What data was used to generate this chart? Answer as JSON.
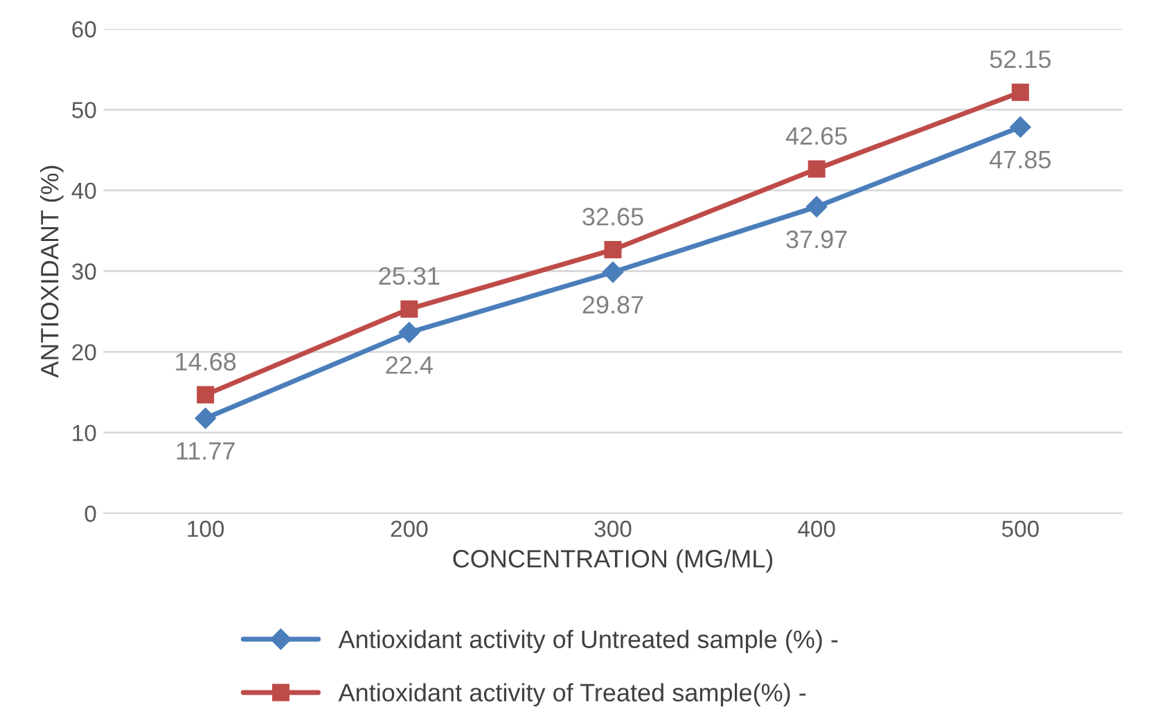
{
  "chart_data": {
    "type": "line",
    "xlabel": "CONCENTRATION (MG/ML)",
    "ylabel": "ANTIOXIDANT (%)",
    "categories": [
      "100",
      "200",
      "300",
      "400",
      "500"
    ],
    "series": [
      {
        "name": "Antioxidant activity of Untreated sample (%) -",
        "color": "#4a7ebb",
        "marker": "diamond",
        "values": [
          11.77,
          22.4,
          29.87,
          37.97,
          47.85
        ]
      },
      {
        "name": "Antioxidant activity of Treated sample(%) -",
        "color": "#be4b48",
        "marker": "square",
        "values": [
          14.68,
          25.31,
          32.65,
          42.65,
          52.15
        ]
      }
    ],
    "ylim": [
      0,
      60
    ],
    "yticks": [
      0,
      10,
      20,
      30,
      40,
      50,
      60
    ],
    "grid": "y",
    "legend": "bottom",
    "data_labels": true,
    "line_style": "solid"
  }
}
